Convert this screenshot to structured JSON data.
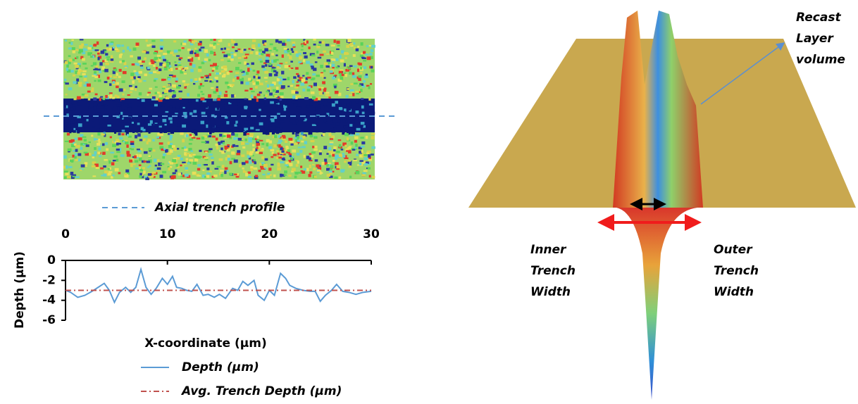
{
  "chart_data": {
    "type": "line",
    "xlabel": "X-coordinate (µm)",
    "ylabel": "Depth (µm)",
    "xlim": [
      0,
      30
    ],
    "xticks": [
      0,
      10,
      20,
      30
    ],
    "ylim": [
      -6,
      0
    ],
    "yticks": [
      0,
      -2,
      -4,
      -6
    ],
    "series": [
      {
        "name": "Depth (µm)",
        "color": "#5b9bd5",
        "style": "solid",
        "x": [
          0,
          0.5,
          1.2,
          1.9,
          2.6,
          3.2,
          3.8,
          4.3,
          4.8,
          5.3,
          5.9,
          6.4,
          6.9,
          7.4,
          7.9,
          8.4,
          8.9,
          9.5,
          10.0,
          10.5,
          10.9,
          11.4,
          11.9,
          12.4,
          12.9,
          13.5,
          14.0,
          14.6,
          15.1,
          15.7,
          16.4,
          16.9,
          17.4,
          17.9,
          18.5,
          18.9,
          19.5,
          20.0,
          20.5,
          21.1,
          21.6,
          22.0,
          22.6,
          23.3,
          24.0,
          24.5,
          25.0,
          25.5,
          26.1,
          26.6,
          27.2,
          27.8,
          28.5,
          29.2,
          30.0
        ],
        "values": [
          -3.0,
          -3.2,
          -3.7,
          -3.5,
          -3.1,
          -2.7,
          -2.3,
          -3.0,
          -4.2,
          -3.2,
          -2.7,
          -3.2,
          -2.7,
          -0.9,
          -2.7,
          -3.4,
          -2.8,
          -1.8,
          -2.4,
          -1.6,
          -2.7,
          -2.8,
          -3.0,
          -3.1,
          -2.4,
          -3.5,
          -3.4,
          -3.7,
          -3.4,
          -3.8,
          -2.8,
          -3.0,
          -2.1,
          -2.5,
          -2.0,
          -3.5,
          -4.0,
          -3.0,
          -3.5,
          -1.3,
          -1.8,
          -2.5,
          -2.8,
          -3.0,
          -3.1,
          -3.1,
          -4.1,
          -3.5,
          -3.0,
          -2.4,
          -3.1,
          -3.2,
          -3.4,
          -3.2,
          -3.1
        ]
      },
      {
        "name": "Avg. Trench Depth (µm)",
        "color": "#c0504d",
        "style": "dashdot",
        "x": [
          0,
          30
        ],
        "values": [
          -3.0,
          -3.0
        ]
      }
    ]
  },
  "figure": {
    "profile_legend": "Axial trench profile",
    "inner_label": [
      "Inner",
      "Trench",
      "Width"
    ],
    "outer_label": [
      "Outer",
      "Trench",
      "Width"
    ],
    "recast_label": [
      "Recast",
      "Layer",
      "volume"
    ]
  }
}
